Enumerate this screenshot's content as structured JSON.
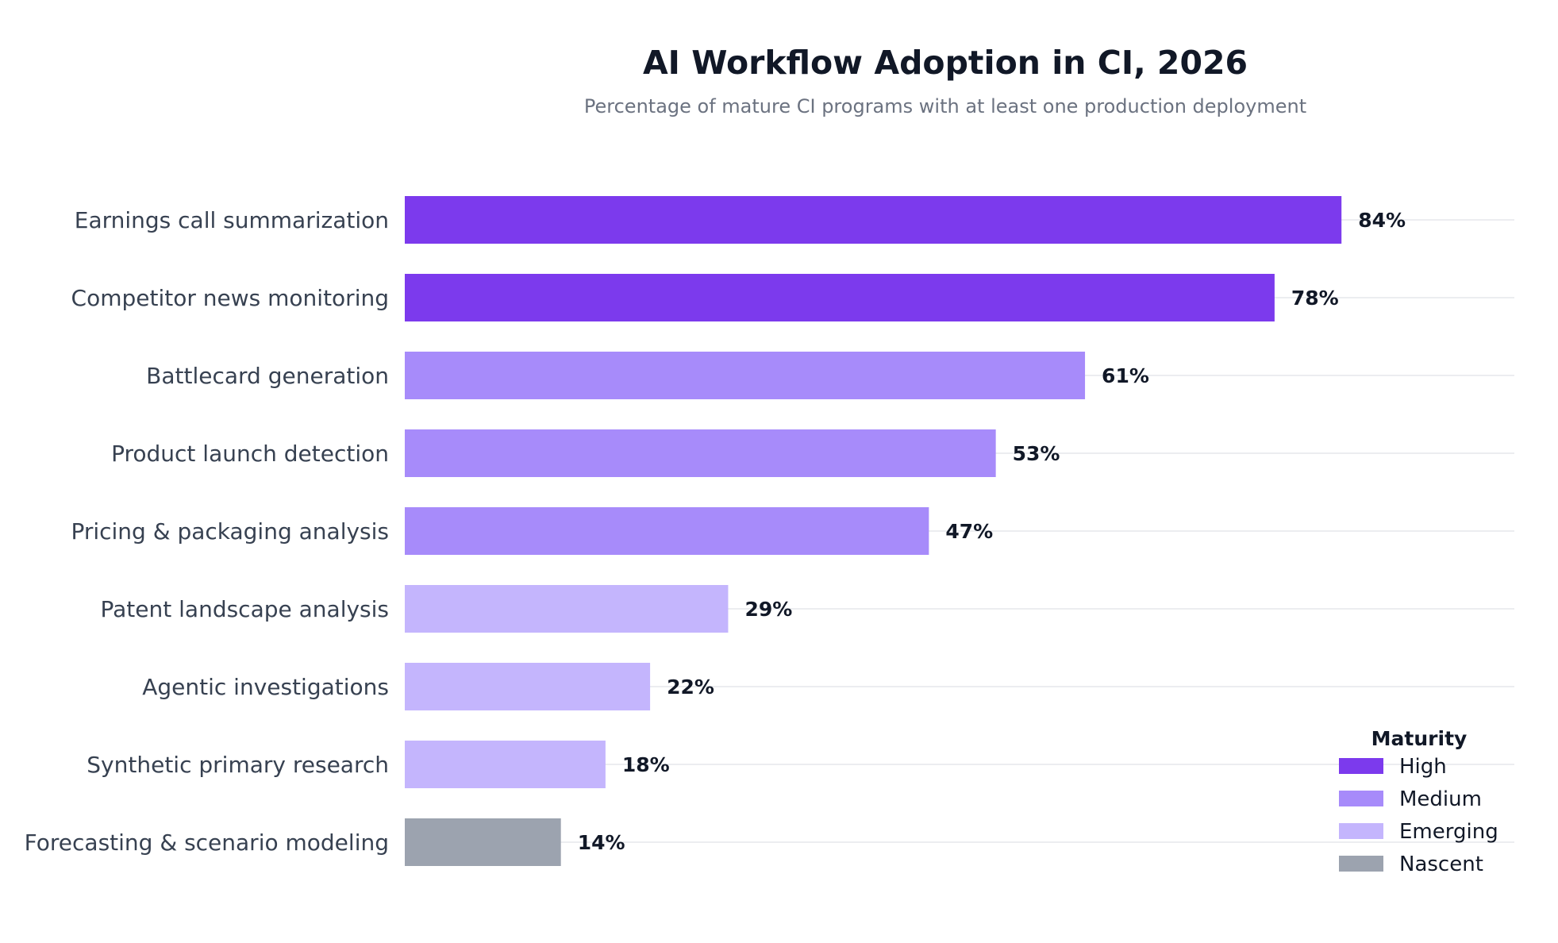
{
  "chart_data": {
    "type": "bar",
    "orientation": "horizontal",
    "title": "AI Workflow Adoption in CI, 2026",
    "subtitle": "Percentage of mature CI programs with at least one production deployment",
    "xlabel": "",
    "ylabel": "",
    "xlim": [
      0,
      100
    ],
    "grid": "horizontal",
    "value_suffix": "%",
    "categories": [
      "Earnings call summarization",
      "Competitor news monitoring",
      "Battlecard generation",
      "Product launch detection",
      "Pricing & packaging analysis",
      "Patent landscape analysis",
      "Agentic investigations",
      "Synthetic primary research",
      "Forecasting & scenario modeling"
    ],
    "values": [
      84,
      78,
      61,
      53,
      47,
      29,
      22,
      18,
      14
    ],
    "maturity": [
      "High",
      "High",
      "Medium",
      "Medium",
      "Medium",
      "Emerging",
      "Emerging",
      "Emerging",
      "Nascent"
    ],
    "legend": {
      "title": "Maturity",
      "placement": "bottom-right",
      "entries": [
        {
          "label": "High",
          "color": "#7c3aed"
        },
        {
          "label": "Medium",
          "color": "#a78bfa"
        },
        {
          "label": "Emerging",
          "color": "#c4b5fd"
        },
        {
          "label": "Nascent",
          "color": "#9ca3af"
        }
      ]
    }
  }
}
